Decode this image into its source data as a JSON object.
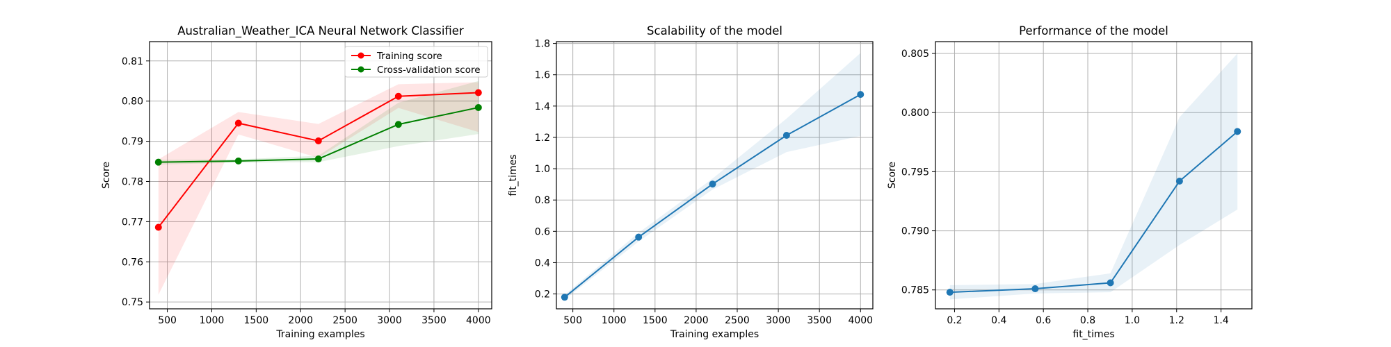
{
  "chart_data": [
    {
      "type": "line",
      "title": "Australian_Weather_ICA Neural Network Classifier",
      "xlabel": "Training examples",
      "ylabel": "Score",
      "xlim": [
        300,
        4150
      ],
      "ylim": [
        0.7483,
        0.8148
      ],
      "xticks": [
        500,
        1000,
        1500,
        2000,
        2500,
        3000,
        3500,
        4000
      ],
      "yticks": [
        0.75,
        0.76,
        0.77,
        0.78,
        0.79,
        0.8,
        0.81
      ],
      "grid": true,
      "legend": "upper-right",
      "series": [
        {
          "name": "Training score",
          "color": "#ff0000",
          "x": [
            400,
            1300,
            2200,
            3100,
            4000
          ],
          "y": [
            0.7686,
            0.7945,
            0.7901,
            0.8012,
            0.8021
          ],
          "band_lower": [
            0.7518,
            0.7917,
            0.7859,
            0.7983,
            0.7923
          ],
          "band_upper": [
            0.7855,
            0.7973,
            0.7943,
            0.8042,
            0.8047
          ],
          "band_color": "#ff0000"
        },
        {
          "name": "Cross-validation score",
          "color": "#008000",
          "x": [
            400,
            1300,
            2200,
            3100,
            4000
          ],
          "y": [
            0.7848,
            0.7851,
            0.7856,
            0.7942,
            0.7984
          ],
          "band_lower": [
            0.7842,
            0.7847,
            0.7848,
            0.7888,
            0.7918
          ],
          "band_upper": [
            0.7854,
            0.7855,
            0.7864,
            0.7996,
            0.805
          ],
          "band_color": "#008000"
        }
      ]
    },
    {
      "type": "line",
      "title": "Scalability of the model",
      "xlabel": "Training examples",
      "ylabel": "fit_times",
      "xlim": [
        300,
        4150
      ],
      "ylim": [
        0.105,
        1.8115
      ],
      "xticks": [
        500,
        1000,
        1500,
        2000,
        2500,
        3000,
        3500,
        4000
      ],
      "yticks": [
        0.2,
        0.4,
        0.6,
        0.8,
        1.0,
        1.2,
        1.4,
        1.6,
        1.8
      ],
      "grid": true,
      "series": [
        {
          "color": "#1f77b4",
          "x": [
            400,
            1300,
            2200,
            3100,
            4000
          ],
          "y": [
            0.179,
            0.563,
            0.902,
            1.213,
            1.474
          ],
          "band_lower": [
            0.164,
            0.535,
            0.867,
            1.106,
            1.209
          ],
          "band_upper": [
            0.194,
            0.591,
            0.937,
            1.32,
            1.739
          ],
          "band_color": "#1f77b4"
        }
      ]
    },
    {
      "type": "line",
      "title": "Performance of the model",
      "xlabel": "fit_times",
      "ylabel": "Score",
      "xlim": [
        0.114,
        1.539
      ],
      "ylim": [
        0.7834,
        0.806
      ],
      "xticks": [
        0.2,
        0.4,
        0.6,
        0.8,
        1.0,
        1.2,
        1.4
      ],
      "yticks": [
        0.785,
        0.79,
        0.795,
        0.8,
        0.805
      ],
      "grid": true,
      "series": [
        {
          "color": "#1f77b4",
          "x": [
            0.179,
            0.563,
            0.902,
            1.213,
            1.474
          ],
          "y": [
            0.7848,
            0.7851,
            0.7856,
            0.7942,
            0.7984
          ],
          "band_lower": [
            0.7842,
            0.7847,
            0.7848,
            0.7888,
            0.7918
          ],
          "band_upper": [
            0.7854,
            0.7855,
            0.7864,
            0.7996,
            0.805
          ],
          "band_color": "#1f77b4"
        }
      ]
    }
  ]
}
